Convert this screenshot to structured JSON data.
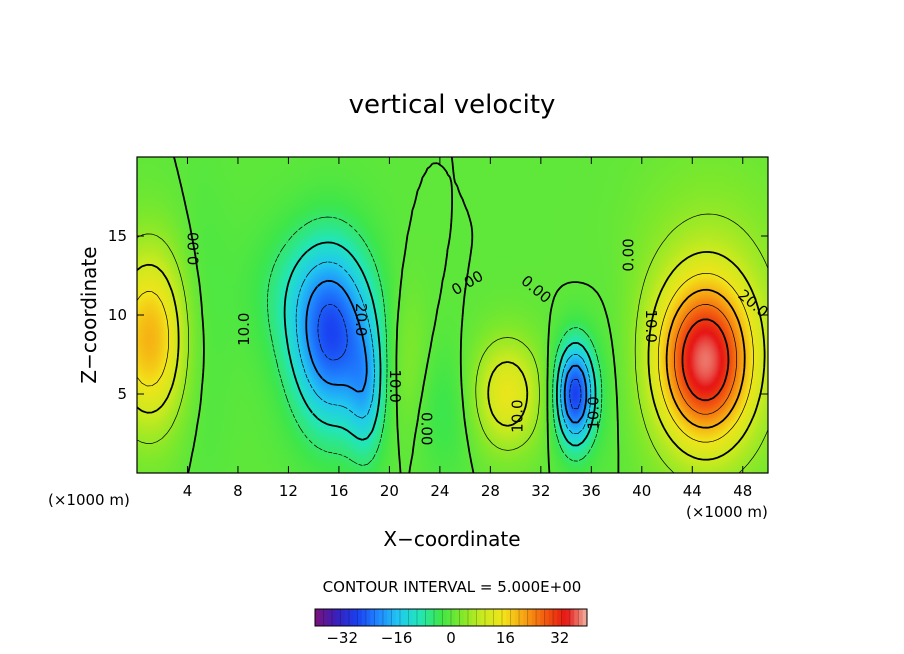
{
  "chart_data": {
    "type": "heatmap",
    "title": "vertical velocity",
    "xlabel": "X−coordinate",
    "ylabel": "Z−coordinate",
    "x_unit_left": "(×1000 m)",
    "x_unit_right": "(×1000 m)",
    "xlim": [
      0,
      50
    ],
    "ylim": [
      0,
      20
    ],
    "x_ticks": [
      4,
      8,
      12,
      16,
      20,
      24,
      28,
      32,
      36,
      40,
      44,
      48
    ],
    "x_tick_labels": [
      "4",
      "8",
      "12",
      "16",
      "20",
      "24",
      "28",
      "32",
      "36",
      "40",
      "44",
      "48"
    ],
    "y_ticks": [
      5,
      10,
      15
    ],
    "y_tick_labels": [
      "5",
      "10",
      "15"
    ],
    "contour_interval_text": "CONTOUR INTERVAL = 5.000E+00",
    "contour_interval": 5,
    "colorbar": {
      "range": [
        -40,
        40
      ],
      "ticks": [
        -32,
        -16,
        0,
        16,
        32
      ],
      "tick_labels": [
        "−32",
        "−16",
        "0",
        "16",
        "32"
      ]
    },
    "contour_labels": [
      {
        "text": "0.00",
        "x": 4.5,
        "y": 14.2,
        "rotate": -90
      },
      {
        "text": "10.0",
        "x": 8.5,
        "y": 9.1,
        "rotate": -90
      },
      {
        "text": "20.0",
        "x": 17.7,
        "y": 9.7,
        "rotate": 90
      },
      {
        "text": "10.0",
        "x": 20.4,
        "y": 5.5,
        "rotate": 90
      },
      {
        "text": "0.00",
        "x": 22.9,
        "y": 2.8,
        "rotate": 90
      },
      {
        "text": "0.00",
        "x": 26.2,
        "y": 12.0,
        "rotate": -30
      },
      {
        "text": "0.00",
        "x": 31.6,
        "y": 11.6,
        "rotate": 40
      },
      {
        "text": "10.0",
        "x": 30.2,
        "y": 3.6,
        "rotate": -90
      },
      {
        "text": "10.0",
        "x": 36.2,
        "y": 3.8,
        "rotate": -90
      },
      {
        "text": "0.00",
        "x": 39.0,
        "y": 13.8,
        "rotate": -90
      },
      {
        "text": "10.0",
        "x": 40.7,
        "y": 9.3,
        "rotate": 90
      },
      {
        "text": "20.0",
        "x": 48.8,
        "y": 10.7,
        "rotate": 40
      }
    ],
    "cells": [
      {
        "x": 1.0,
        "z": 8.5,
        "sx": 2.2,
        "sz": 4.0,
        "w": 20
      },
      {
        "x": 15.5,
        "z": 8.5,
        "sx": 2.3,
        "sz": 4.0,
        "w": -25
      },
      {
        "x": 18.2,
        "z": 5.0,
        "sx": 1.0,
        "sz": 3.0,
        "w": -10
      },
      {
        "x": 13.0,
        "z": 11.5,
        "sx": 3.0,
        "sz": 3.0,
        "w": -5
      },
      {
        "x": 29.3,
        "z": 5.0,
        "sx": 2.0,
        "sz": 2.5,
        "w": 14
      },
      {
        "x": 34.7,
        "z": 5.0,
        "sx": 1.1,
        "sz": 2.3,
        "w": -28
      },
      {
        "x": 45.0,
        "z": 7.0,
        "sx": 2.5,
        "sz": 3.5,
        "w": 30
      },
      {
        "x": 45.5,
        "z": 9.0,
        "sx": 4.5,
        "sz": 6.5,
        "w": 8
      },
      {
        "x": 5.0,
        "z": 9.0,
        "sx": 1.5,
        "sz": 6.0,
        "w": -3
      },
      {
        "x": 21.5,
        "z": 7.0,
        "sx": 1.2,
        "sz": 3.5,
        "w": 4
      },
      {
        "x": 24.5,
        "z": 4.0,
        "sx": 1.8,
        "sz": 3.0,
        "w": -4
      },
      {
        "x": 37.5,
        "z": 6.0,
        "sx": 1.5,
        "sz": 5.0,
        "w": -2
      }
    ],
    "colors": {
      "scale": [
        "#7a127a",
        "#3a1fb8",
        "#1a3ff0",
        "#1f86ff",
        "#21c8f0",
        "#22e6b8",
        "#3ee64a",
        "#7fe82b",
        "#c8ea1f",
        "#f2e41a",
        "#f7a312",
        "#f25a10",
        "#e61414",
        "#f0b3a0"
      ]
    }
  }
}
